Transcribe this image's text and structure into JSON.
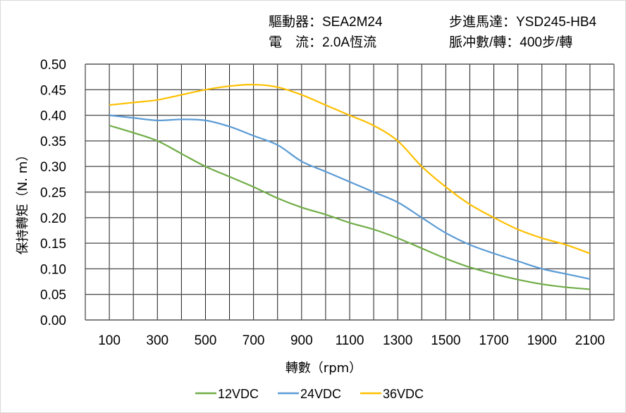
{
  "header": {
    "driver": "驅動器：SEA2M24",
    "motor": "步進馬達：YSD245-HB4",
    "current": "電　流：2.0A恆流",
    "pulses": "脈冲數/轉：400步/轉"
  },
  "chart_data": {
    "type": "line",
    "title": "",
    "xlabel": "轉數（rpm）",
    "ylabel": "保持轉矩（N. m）",
    "xlim": [
      0,
      2200
    ],
    "ylim": [
      0,
      0.5
    ],
    "grid": true,
    "legend": "bottom",
    "x_ticks": [
      "100",
      "300",
      "500",
      "700",
      "900",
      "1100",
      "1300",
      "1500",
      "1700",
      "1900",
      "2100"
    ],
    "y_ticks": [
      "0.00",
      "0.05",
      "0.10",
      "0.15",
      "0.20",
      "0.25",
      "0.30",
      "0.35",
      "0.40",
      "0.45",
      "0.50"
    ],
    "x": [
      100,
      200,
      300,
      400,
      500,
      600,
      700,
      800,
      900,
      1000,
      1100,
      1200,
      1300,
      1400,
      1500,
      1600,
      1700,
      1800,
      1900,
      2000,
      2100
    ],
    "series": [
      {
        "name": "12VDC",
        "color": "#70ad47",
        "values": [
          0.38,
          0.366,
          0.35,
          0.325,
          0.3,
          0.28,
          0.26,
          0.238,
          0.22,
          0.206,
          0.19,
          0.177,
          0.16,
          0.14,
          0.12,
          0.103,
          0.09,
          0.079,
          0.07,
          0.064,
          0.06
        ]
      },
      {
        "name": "24VDC",
        "color": "#5b9bd5",
        "values": [
          0.4,
          0.395,
          0.39,
          0.392,
          0.39,
          0.378,
          0.36,
          0.342,
          0.31,
          0.29,
          0.27,
          0.25,
          0.23,
          0.2,
          0.17,
          0.147,
          0.13,
          0.115,
          0.1,
          0.09,
          0.08
        ]
      },
      {
        "name": "36VDC",
        "color": "#ffc000",
        "values": [
          0.42,
          0.425,
          0.43,
          0.44,
          0.45,
          0.457,
          0.46,
          0.455,
          0.44,
          0.42,
          0.4,
          0.38,
          0.35,
          0.3,
          0.26,
          0.226,
          0.2,
          0.177,
          0.16,
          0.147,
          0.13
        ]
      }
    ]
  }
}
